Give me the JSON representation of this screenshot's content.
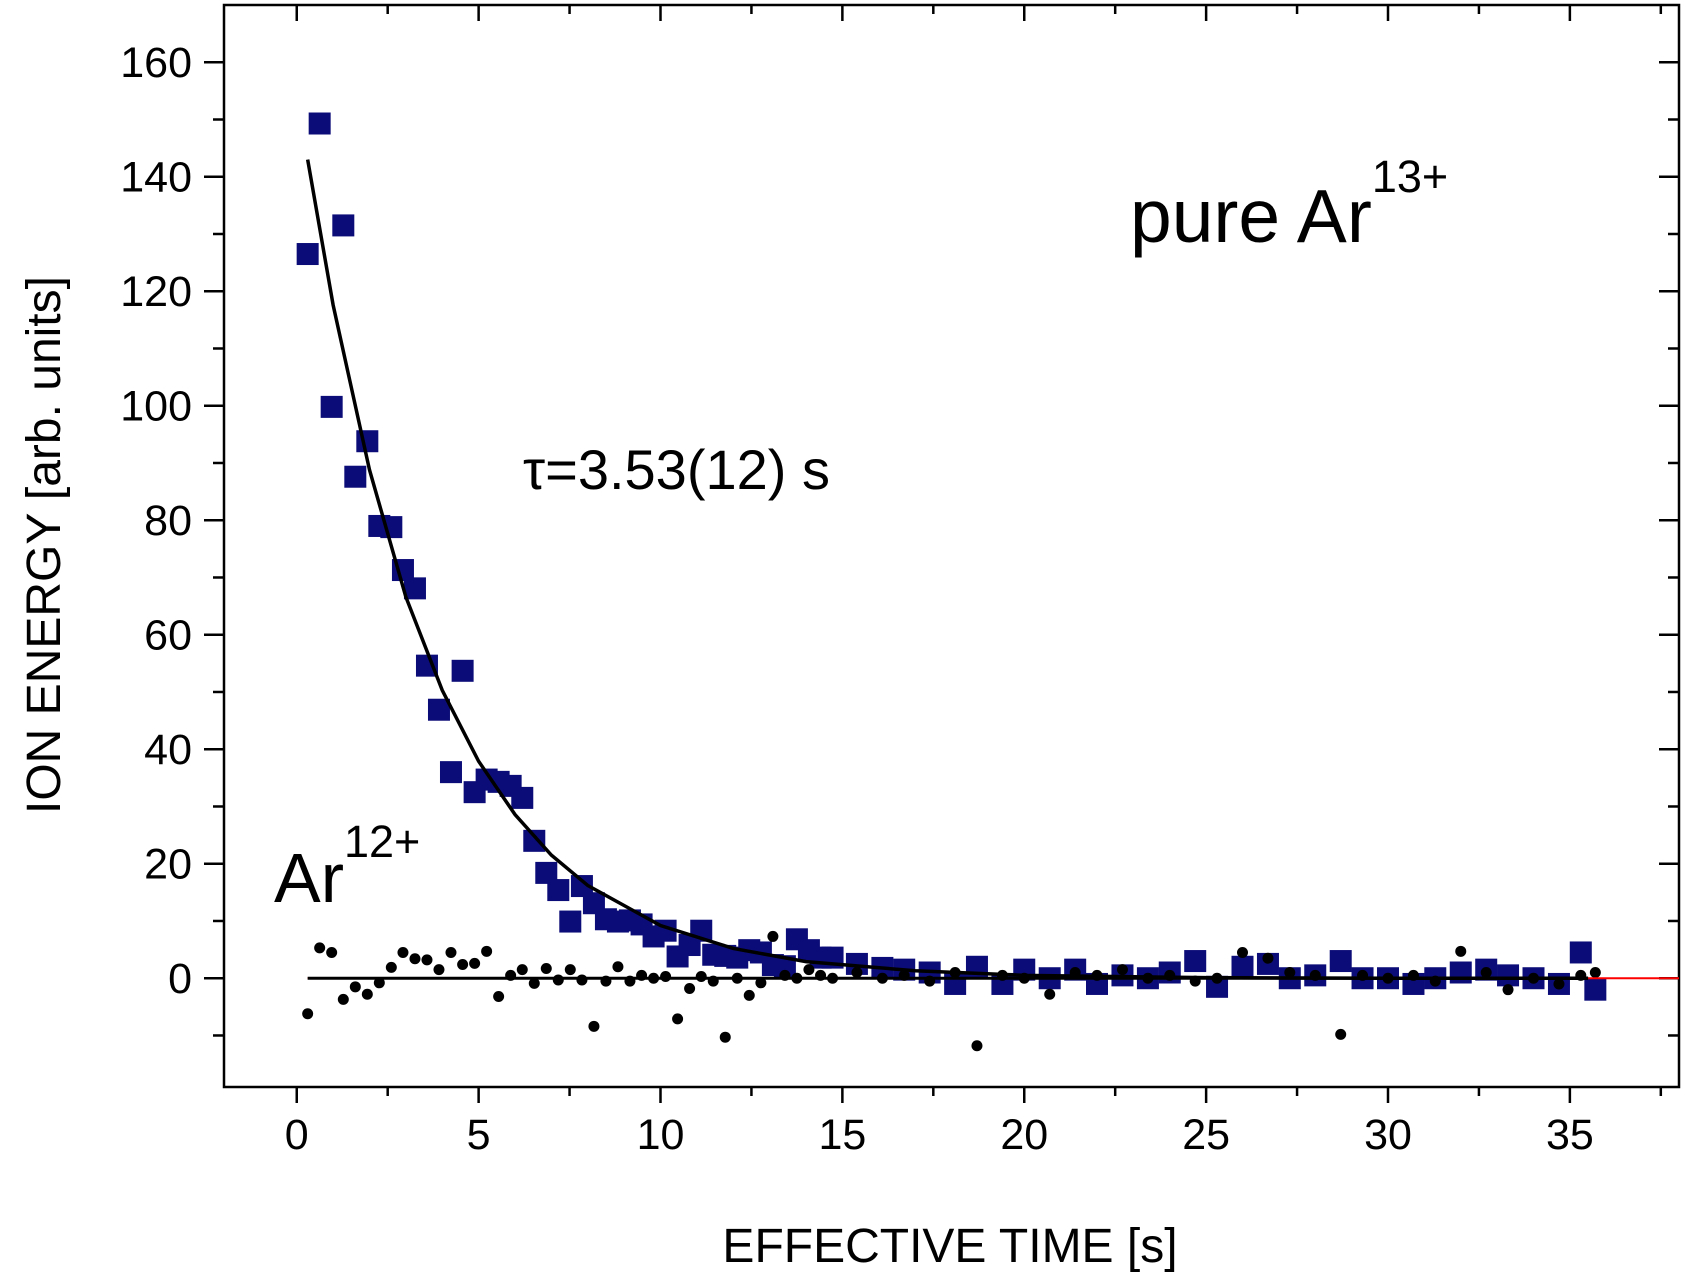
{
  "chart_data": {
    "type": "scatter",
    "xlabel": "EFFECTIVE TIME [s]",
    "ylabel": "ION ENERGY [arb. units]",
    "xlim": [
      -2,
      38
    ],
    "ylim": [
      -19,
      170
    ],
    "xticks": [
      0,
      5,
      10,
      15,
      20,
      25,
      30,
      35
    ],
    "xminor": [
      -2.5,
      2.5,
      7.5,
      12.5,
      17.5,
      22.5,
      27.5,
      32.5,
      37.5
    ],
    "yticks": [
      0,
      20,
      40,
      60,
      80,
      100,
      120,
      140,
      160
    ],
    "yminor": [
      -10,
      10,
      30,
      50,
      70,
      90,
      110,
      130,
      150
    ],
    "annotations": [
      {
        "text": "pure Ar",
        "sup": "13+",
        "color": "#0c0c78"
      },
      {
        "text": "τ=3.53(12) s",
        "color": "#0c0c78"
      },
      {
        "text": "Ar",
        "sup": "12+",
        "color": "#000000"
      }
    ],
    "series": [
      {
        "marker": "square",
        "color": "#0c0c78",
        "x": [
          0.3,
          0.63,
          0.96,
          1.28,
          1.61,
          1.94,
          2.27,
          2.6,
          2.92,
          3.25,
          3.58,
          3.91,
          4.24,
          4.56,
          4.89,
          5.22,
          5.55,
          5.88,
          6.2,
          6.53,
          6.86,
          7.19,
          7.52,
          7.84,
          8.17,
          8.5,
          8.83,
          9.16,
          9.48,
          9.81,
          10.14,
          10.47,
          10.8,
          11.12,
          11.45,
          11.78,
          12.11,
          12.44,
          12.76,
          13.09,
          13.42,
          13.75,
          14.08,
          14.4,
          14.73,
          15.4,
          16.1,
          16.7,
          17.4,
          18.1,
          18.7,
          19.4,
          20.0,
          20.7,
          21.4,
          22.0,
          22.7,
          23.4,
          24.0,
          24.7,
          25.3,
          26.0,
          26.7,
          27.3,
          28.0,
          28.7,
          29.3,
          30.0,
          30.7,
          31.3,
          32.0,
          32.7,
          33.3,
          34.0,
          34.7,
          35.3,
          35.7
        ],
        "values": [
          126.5,
          149.3,
          99.8,
          131.5,
          87.6,
          93.8,
          79,
          78.8,
          71.3,
          68.1,
          54.6,
          46.9,
          36,
          53.7,
          32.5,
          34.7,
          34.3,
          33.6,
          31.5,
          24,
          18.4,
          15.4,
          9.9,
          16.1,
          13.1,
          10.3,
          9.9,
          10.1,
          9.4,
          7.3,
          8.3,
          3.8,
          5.8,
          8.3,
          4.1,
          3.9,
          3.6,
          4.9,
          4.5,
          2.3,
          2.1,
          6.8,
          4.9,
          3.6,
          3.6,
          2.5,
          1.8,
          1.5,
          1,
          -1,
          2,
          -1,
          1.5,
          0,
          1.5,
          -1,
          0.5,
          0,
          1,
          3,
          -1.5,
          2,
          2.5,
          0,
          0.5,
          3,
          0,
          0,
          -1,
          0,
          1,
          1.5,
          0.5,
          0,
          -1,
          4.5,
          -2
        ]
      },
      {
        "marker": "dot",
        "color": "#000000",
        "x": [
          0.3,
          0.63,
          0.96,
          1.28,
          1.61,
          1.94,
          2.27,
          2.6,
          2.92,
          3.25,
          3.58,
          3.91,
          4.24,
          4.56,
          4.89,
          5.22,
          5.55,
          5.88,
          6.2,
          6.53,
          6.86,
          7.19,
          7.52,
          7.84,
          8.17,
          8.5,
          8.83,
          9.16,
          9.48,
          9.81,
          10.14,
          10.47,
          10.8,
          11.12,
          11.45,
          11.78,
          12.11,
          12.44,
          12.76,
          13.09,
          13.42,
          13.75,
          14.08,
          14.4,
          14.73,
          15.4,
          16.1,
          16.7,
          17.4,
          18.1,
          18.7,
          19.4,
          20.0,
          20.7,
          21.4,
          22.0,
          22.7,
          23.4,
          24.0,
          24.7,
          25.3,
          26.0,
          26.7,
          27.3,
          28.0,
          28.7,
          29.3,
          30.0,
          30.7,
          31.3,
          32.0,
          32.7,
          33.3,
          34.0,
          34.7,
          35.3,
          35.7
        ],
        "values": [
          -6.2,
          5.3,
          4.5,
          -3.7,
          -1.5,
          -2.8,
          -0.8,
          1.9,
          4.5,
          3.4,
          3.2,
          1.5,
          4.5,
          2.4,
          2.6,
          4.7,
          -3.2,
          0.5,
          1.5,
          -0.9,
          1.7,
          -0.3,
          1.5,
          -0.3,
          -8.4,
          -0.5,
          2,
          -0.5,
          0.5,
          0,
          0.3,
          -7.1,
          -1.8,
          0.3,
          -0.5,
          -10.3,
          0,
          -3,
          -0.8,
          7.3,
          0.5,
          0,
          1.5,
          0.5,
          0,
          1,
          0,
          0.5,
          -0.5,
          1,
          -11.8,
          0.5,
          0,
          -2.8,
          1,
          0.5,
          1.5,
          0,
          0.5,
          -0.5,
          0,
          4.5,
          3.5,
          1,
          0.5,
          -9.8,
          0.5,
          0,
          0.5,
          -0.5,
          4.7,
          1,
          -2,
          0,
          -1,
          0.5,
          1
        ]
      },
      {
        "marker": "line",
        "color": "#ff0000",
        "width": 2,
        "x": [
          0.3,
          38
        ],
        "values": [
          0,
          0
        ]
      },
      {
        "marker": "line",
        "color": "#000000",
        "width": 3,
        "x": [
          0.3,
          35.5
        ],
        "values": [
          0,
          0
        ]
      },
      {
        "marker": "line",
        "color": "#000000",
        "width": 3.5,
        "x": [
          0.3,
          1,
          2,
          3,
          4,
          5,
          6,
          7,
          8,
          10,
          12,
          14,
          17,
          20,
          25,
          30,
          35.5
        ],
        "values": [
          143.0,
          117.6,
          88.8,
          66.6,
          50.3,
          37.9,
          28.6,
          21.5,
          16.2,
          9.2,
          5.2,
          2.9,
          1.3,
          0.5,
          0.1,
          0,
          0
        ]
      }
    ]
  }
}
